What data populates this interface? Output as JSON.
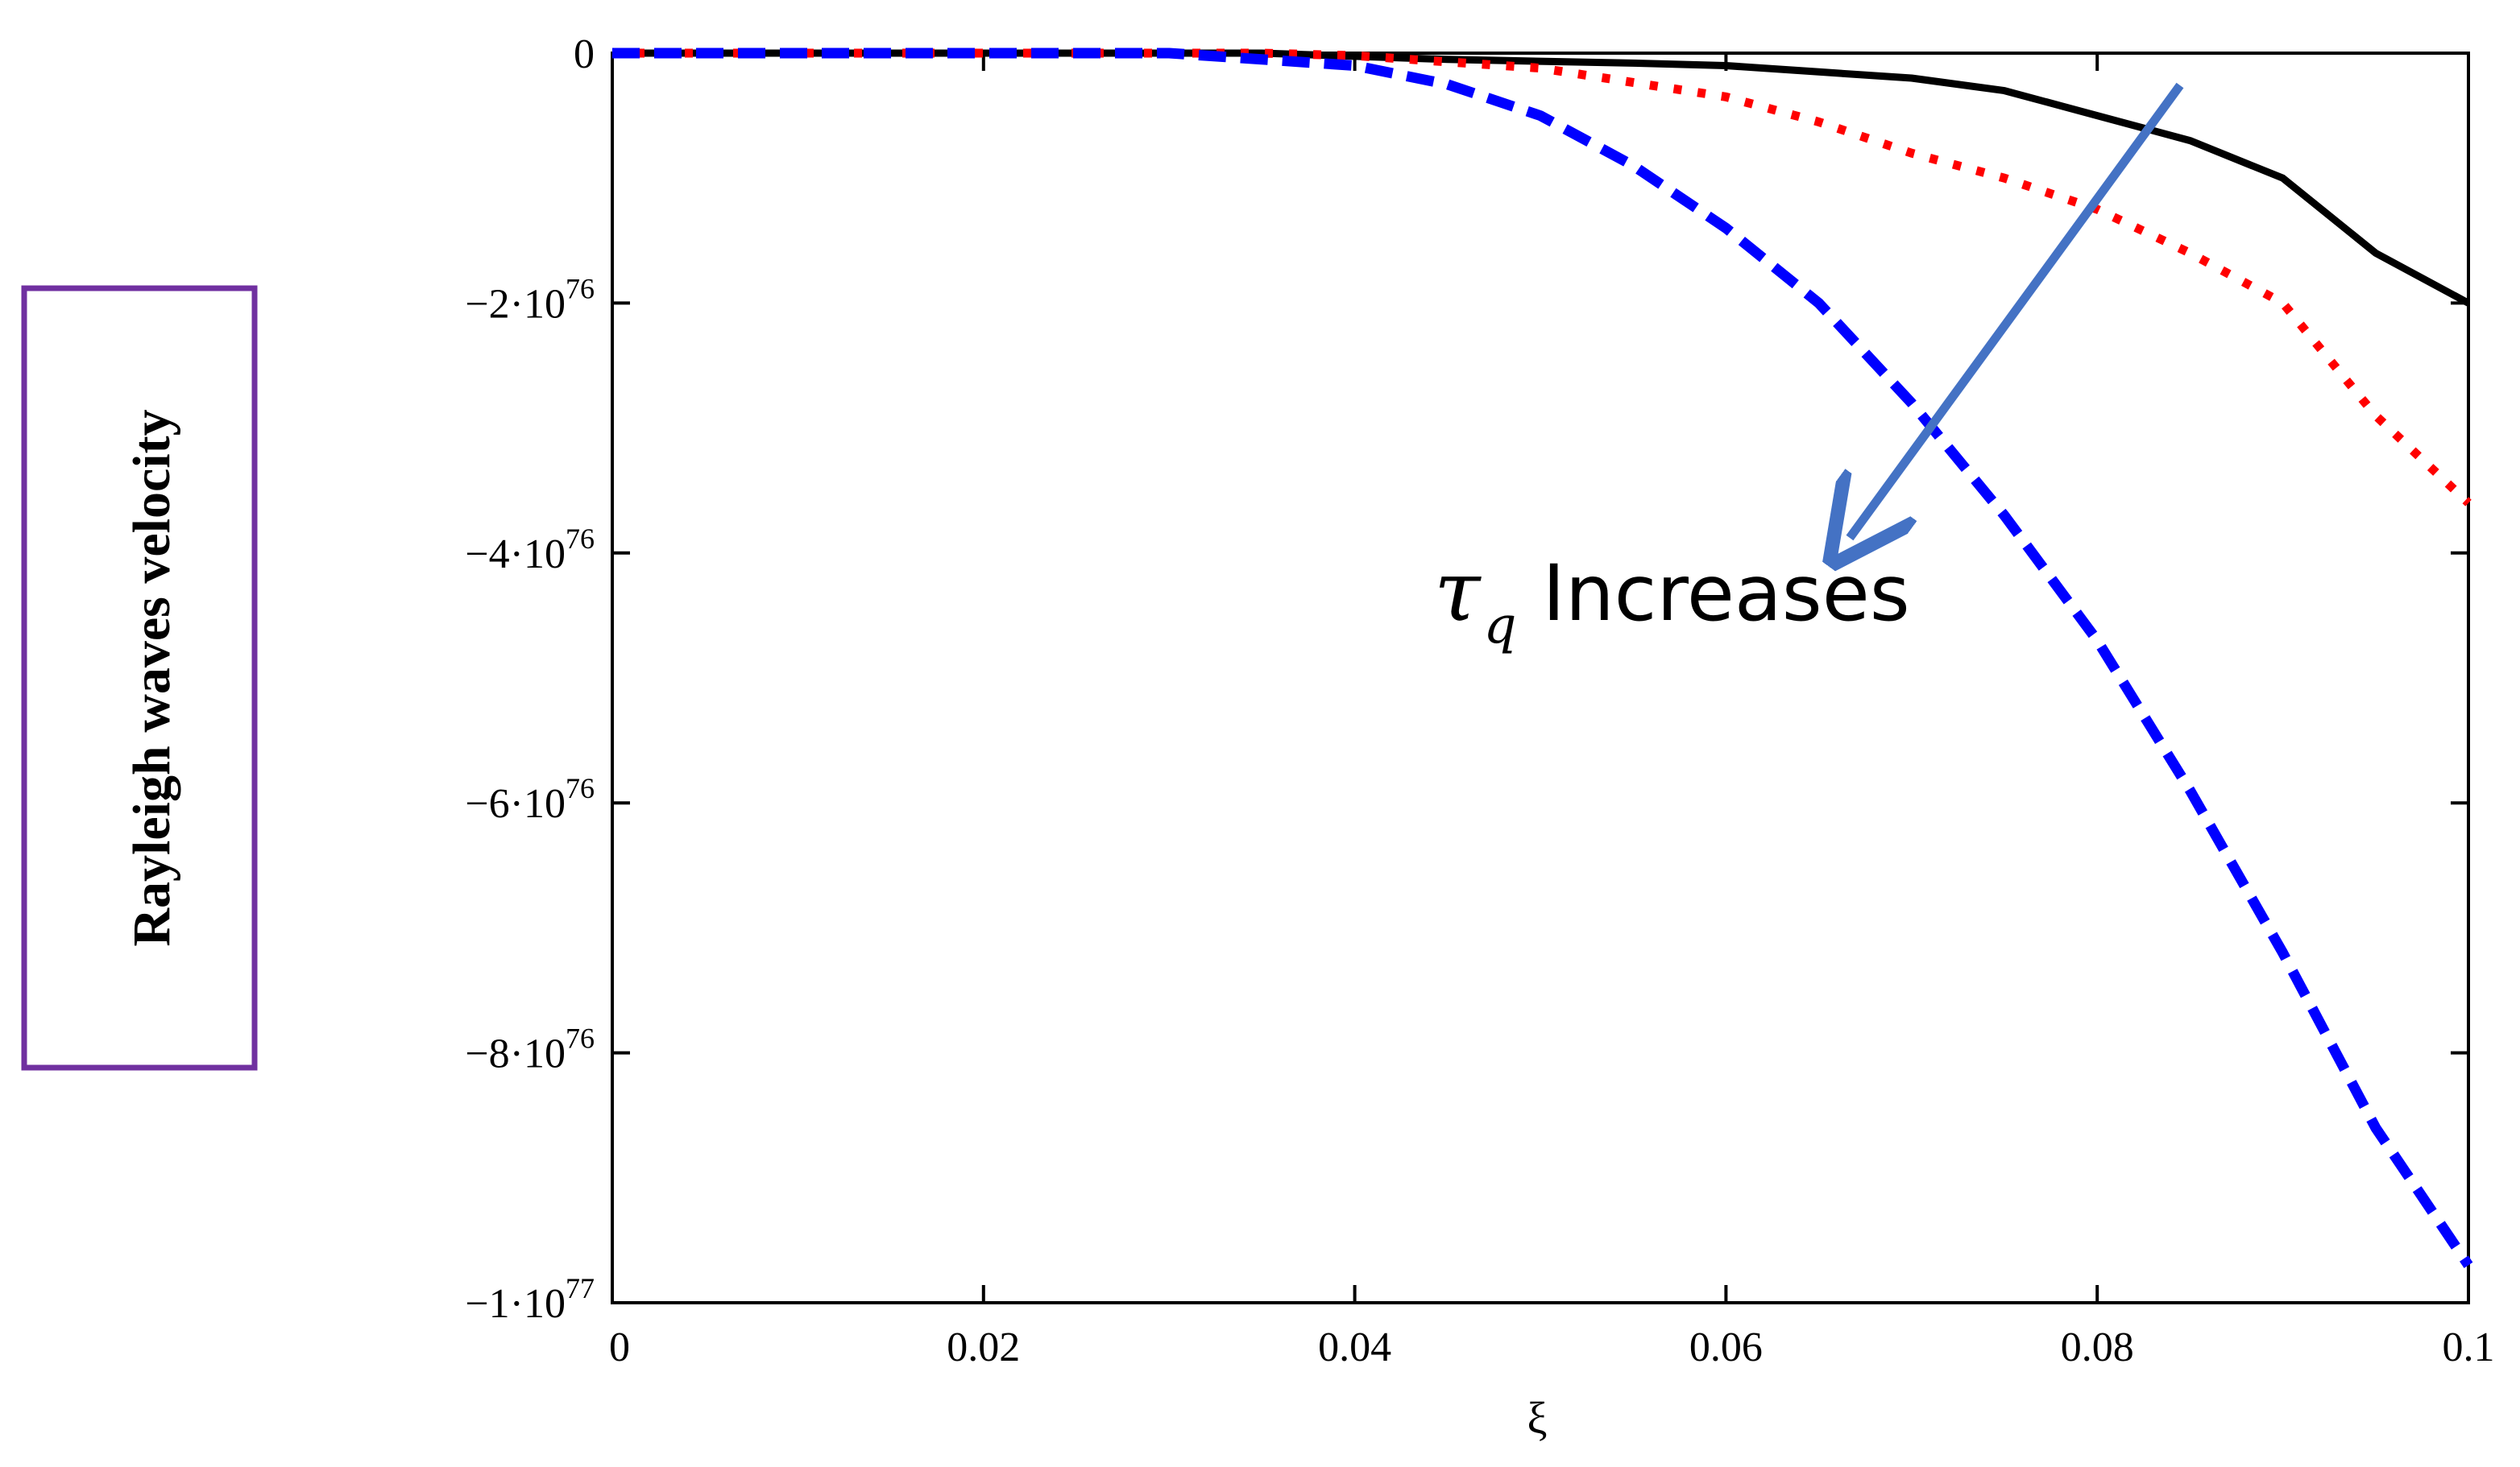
{
  "chart_data": {
    "type": "line",
    "xlabel": "ξ",
    "ylabel": "Rayleigh waves velocity",
    "xlim": [
      0,
      0.1
    ],
    "ylim": [
      -1e+77,
      0
    ],
    "x_ticks": [
      {
        "value": 0,
        "label": "0"
      },
      {
        "value": 0.02,
        "label": "0.02"
      },
      {
        "value": 0.04,
        "label": "0.04"
      },
      {
        "value": 0.06,
        "label": "0.06"
      },
      {
        "value": 0.08,
        "label": "0.08"
      },
      {
        "value": 0.1,
        "label": "0.1"
      }
    ],
    "y_ticks": [
      {
        "value": 0,
        "mantissa": "0",
        "exponent": ""
      },
      {
        "value": -2e+76,
        "mantissa": "−2·10",
        "exponent": "76"
      },
      {
        "value": -4e+76,
        "mantissa": "−4·10",
        "exponent": "76"
      },
      {
        "value": -6e+76,
        "mantissa": "−6·10",
        "exponent": "76"
      },
      {
        "value": -8e+76,
        "mantissa": "−8·10",
        "exponent": "76"
      },
      {
        "value": -1e+77,
        "mantissa": "−1·10",
        "exponent": "77"
      }
    ],
    "series": [
      {
        "color": "#000000",
        "style": "solid",
        "points": [
          [
            0,
            0
          ],
          [
            0.035,
            0
          ],
          [
            0.045,
            -5e+74
          ],
          [
            0.055,
            -8e+74
          ],
          [
            0.06,
            -1e+75
          ],
          [
            0.065,
            -1.5e+75
          ],
          [
            0.07,
            -2e+75
          ],
          [
            0.075,
            -3e+75
          ],
          [
            0.08,
            -5e+75
          ],
          [
            0.085,
            -7e+75
          ],
          [
            0.09,
            -1e+76
          ],
          [
            0.095,
            -1.6e+76
          ],
          [
            0.1,
            -2e+76
          ]
        ]
      },
      {
        "color": "#ff0000",
        "style": "dotted",
        "points": [
          [
            0,
            0
          ],
          [
            0.035,
            0
          ],
          [
            0.04,
            -2e+74
          ],
          [
            0.05,
            -1.2e+75
          ],
          [
            0.06,
            -3.5e+75
          ],
          [
            0.065,
            -5.5e+75
          ],
          [
            0.07,
            -8e+75
          ],
          [
            0.075,
            -1e+76
          ],
          [
            0.08,
            -1.25e+76
          ],
          [
            0.085,
            -1.6e+76
          ],
          [
            0.09,
            -2e+76
          ],
          [
            0.095,
            -2.9e+76
          ],
          [
            0.1,
            -3.6e+76
          ]
        ]
      },
      {
        "color": "#0000ff",
        "style": "dashed",
        "points": [
          [
            0,
            0
          ],
          [
            0.03,
            0
          ],
          [
            0.04,
            -1e+75
          ],
          [
            0.045,
            -2.5e+75
          ],
          [
            0.05,
            -5e+75
          ],
          [
            0.055,
            -9e+75
          ],
          [
            0.06,
            -1.4e+76
          ],
          [
            0.065,
            -2e+76
          ],
          [
            0.07,
            -2.8e+76
          ],
          [
            0.075,
            -3.7e+76
          ],
          [
            0.08,
            -4.7e+76
          ],
          [
            0.085,
            -5.9e+76
          ],
          [
            0.09,
            -7.2e+76
          ],
          [
            0.095,
            -8.6e+76
          ],
          [
            0.1,
            -9.7e+76
          ]
        ]
      }
    ],
    "annotation": {
      "symbol": "τ",
      "subscript": "q",
      "text": "Increases",
      "arrow_color": "#4472c4"
    }
  }
}
